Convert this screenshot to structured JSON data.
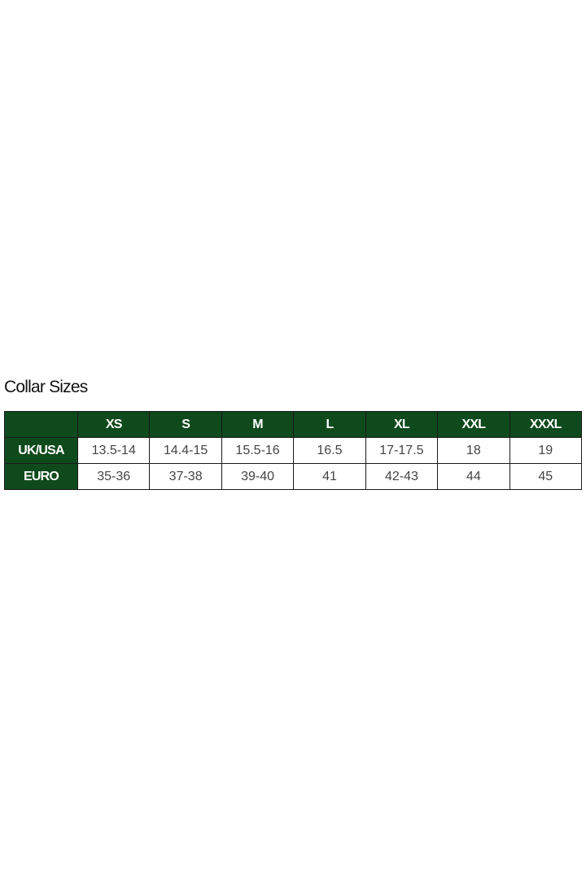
{
  "title": "Collar Sizes",
  "colors": {
    "header_bg": "#0f4a1c",
    "header_text": "#ffffff"
  },
  "table": {
    "headers": [
      "",
      "XS",
      "S",
      "M",
      "L",
      "XL",
      "XXL",
      "XXXL"
    ],
    "rows": [
      {
        "label": "UK/USA",
        "values": [
          "13.5-14",
          "14.4-15",
          "15.5-16",
          "16.5",
          "17-17.5",
          "18",
          "19"
        ]
      },
      {
        "label": "EURO",
        "values": [
          "35-36",
          "37-38",
          "39-40",
          "41",
          "42-43",
          "44",
          "45"
        ]
      }
    ]
  }
}
